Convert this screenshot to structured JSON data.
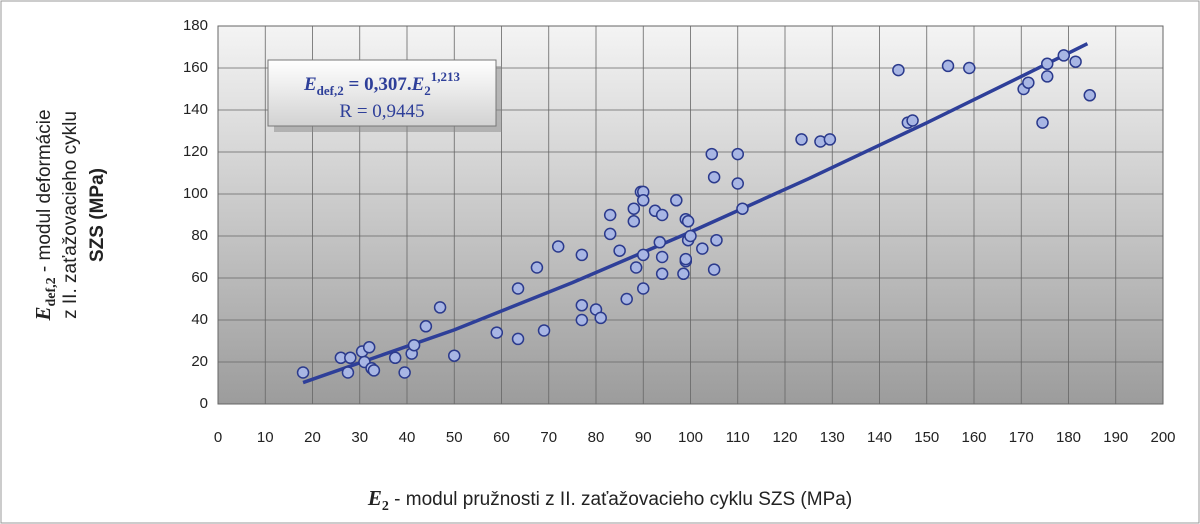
{
  "chart_data": {
    "type": "scatter",
    "x": [
      18,
      26,
      28,
      27.5,
      30.5,
      31,
      32,
      32.5,
      33,
      37.5,
      39.5,
      41,
      41.5,
      44,
      47,
      50,
      59,
      63.5,
      63.5,
      67.5,
      69,
      72,
      77,
      77,
      77,
      80,
      81,
      83,
      83,
      85,
      86.5,
      88,
      88,
      88.5,
      89.5,
      90,
      90,
      90,
      90,
      92.5,
      93.5,
      94,
      94,
      94,
      97,
      98.5,
      99,
      99.5,
      99,
      99,
      99.5,
      100,
      102.5,
      104.5,
      105,
      105.5,
      105,
      110,
      110,
      111,
      123.5,
      127.5,
      129.5,
      144,
      146,
      147,
      154.5,
      159,
      170.5,
      171.5,
      174.5,
      175.5,
      175.5,
      179,
      181.5,
      184.5
    ],
    "values": [
      15,
      22,
      22,
      15,
      25,
      20,
      27,
      17,
      16,
      22,
      15,
      24,
      28,
      37,
      46,
      23,
      34,
      31,
      55,
      65,
      35,
      75,
      71,
      47,
      40,
      45,
      41,
      90,
      81,
      73,
      50,
      93,
      87,
      65,
      101,
      101,
      97,
      55,
      71,
      92,
      77,
      90,
      70,
      62,
      97,
      62,
      88,
      87,
      68,
      69,
      78,
      80,
      74,
      119,
      108,
      78,
      64,
      119,
      105,
      93,
      126,
      125,
      126,
      159,
      134,
      135,
      161,
      160,
      150,
      153,
      134,
      162,
      156,
      166,
      163,
      147
    ],
    "color": "#a8b6e4",
    "edge_color": "#2b3a8c",
    "trendline": {
      "type": "line",
      "x": [
        18,
        50,
        75,
        100,
        125,
        150,
        175,
        184
      ],
      "values": [
        10.2,
        35.3,
        57.8,
        81.9,
        107.3,
        133.9,
        161.5,
        171.6
      ],
      "color": "#2e3f99"
    },
    "xlim": [
      0,
      200
    ],
    "xticks": [
      0,
      10,
      20,
      30,
      40,
      50,
      60,
      70,
      80,
      90,
      100,
      110,
      120,
      130,
      140,
      150,
      160,
      170,
      180,
      190,
      200
    ],
    "ylim": [
      0,
      180
    ],
    "yticks": [
      0,
      20,
      40,
      60,
      80,
      100,
      120,
      140,
      160,
      180
    ],
    "grid": true,
    "x_label": {
      "symbol": "E",
      "sub": "2",
      "text": " - modul  pružnosti z II. zaťažovacieho cyklu SZS (MPa)"
    },
    "y_label": {
      "symbol": "E",
      "sub": "def,2",
      "text": " - modul deformácie",
      "line2": "z II. zaťažovacieho cyklu",
      "line3": "SZS  (MPa)"
    },
    "annotation": {
      "lhs_symbol": "E",
      "lhs_sub": "def,2",
      "middle": " = 0,307.",
      "rhs_symbol": "E",
      "rhs_sub": "2",
      "rhs_sup": "1,213",
      "r": "R = 0,9445"
    }
  }
}
